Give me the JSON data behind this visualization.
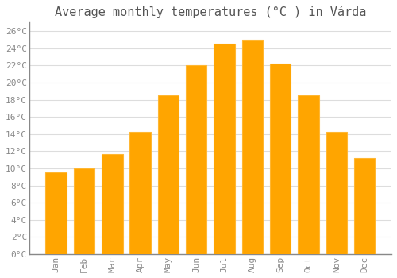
{
  "title": "Average monthly temperatures (°C ) in Várda",
  "months": [
    "Jan",
    "Feb",
    "Mar",
    "Apr",
    "May",
    "Jun",
    "Jul",
    "Aug",
    "Sep",
    "Oct",
    "Nov",
    "Dec"
  ],
  "values": [
    9.5,
    10.0,
    11.7,
    14.3,
    18.5,
    22.0,
    24.5,
    25.0,
    22.2,
    18.5,
    14.3,
    11.2
  ],
  "bar_color": "#FFA500",
  "bar_edge_color": "#FFB733",
  "background_color": "#FFFFFF",
  "grid_color": "#DDDDDD",
  "ylim": [
    0,
    27
  ],
  "yticks": [
    0,
    2,
    4,
    6,
    8,
    10,
    12,
    14,
    16,
    18,
    20,
    22,
    24,
    26
  ],
  "title_fontsize": 11,
  "tick_fontsize": 8,
  "bar_width": 0.75,
  "tick_color": "#888888",
  "spine_color": "#888888"
}
